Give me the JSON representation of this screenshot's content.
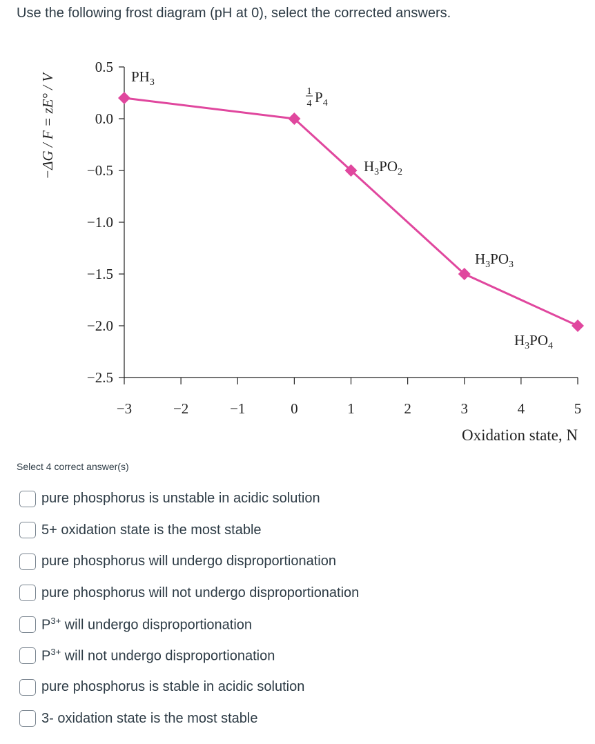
{
  "question": "Use the following frost diagram (pH at 0), select the corrected answers.",
  "select_note": "Select 4 correct answer(s)",
  "answers": [
    {
      "text": "pure phosphorus is unstable in acidic solution"
    },
    {
      "text": "5+ oxidation state is the most stable"
    },
    {
      "text": "pure phosphorus will undergo disproportionation"
    },
    {
      "text": "pure phosphorus will not undergo disproportionation"
    },
    {
      "prefix": "P",
      "sup": "3+",
      "text": " will undergo disproportionation"
    },
    {
      "prefix": "P",
      "sup": "3+",
      "text": " will not undergo disproportionation"
    },
    {
      "text": "pure phosphorus is stable in acidic solution"
    },
    {
      "text": "3- oxidation state is the most stable"
    }
  ],
  "chart_data": {
    "type": "line",
    "ylabel": "−ΔG / F = zE° / V",
    "xlabel": "Oxidation state, N",
    "xlim": [
      -3,
      5
    ],
    "ylim": [
      -2.5,
      0.5
    ],
    "x_ticks": [
      "−3",
      "−2",
      "−1",
      "0",
      "1",
      "2",
      "3",
      "4",
      "5"
    ],
    "y_ticks": [
      "0.5",
      "0.0",
      "−0.5",
      "−1.0",
      "−1.5",
      "−2.0",
      "−2.5"
    ],
    "line_color": "#e0479e",
    "marker": "diamond",
    "points": [
      {
        "x": -3,
        "y": 0.2,
        "label": "PH3"
      },
      {
        "x": 0,
        "y": 0.0,
        "label": "1/4 P4"
      },
      {
        "x": 1,
        "y": -0.5,
        "label": "H3PO2"
      },
      {
        "x": 3,
        "y": -1.5,
        "label": "H3PO3"
      },
      {
        "x": 5,
        "y": -2.0,
        "label": "H3PO4"
      }
    ]
  }
}
